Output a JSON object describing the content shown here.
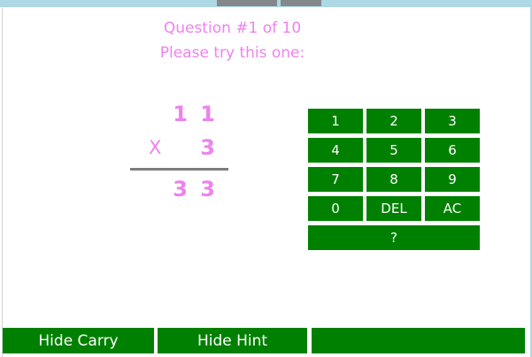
{
  "header": {
    "question_counter": "Question #1 of 10",
    "prompt": "Please try this one:"
  },
  "problem": {
    "multiplicand": "1 1",
    "operator": "X",
    "multiplier": "3",
    "answer": "3 3"
  },
  "keypad": {
    "keys": [
      "1",
      "2",
      "3",
      "4",
      "5",
      "6",
      "7",
      "8",
      "9",
      "0",
      "DEL",
      "AC"
    ],
    "help_key": "?"
  },
  "footer": {
    "hide_carry_label": "Hide Carry",
    "hide_hint_label": "Hide Hint",
    "empty_label": ""
  },
  "colors": {
    "accent_text": "#EE82EE",
    "key_green": "#008000",
    "frame_blue": "#ADD8E6",
    "rule_gray": "#7d7d7d"
  }
}
